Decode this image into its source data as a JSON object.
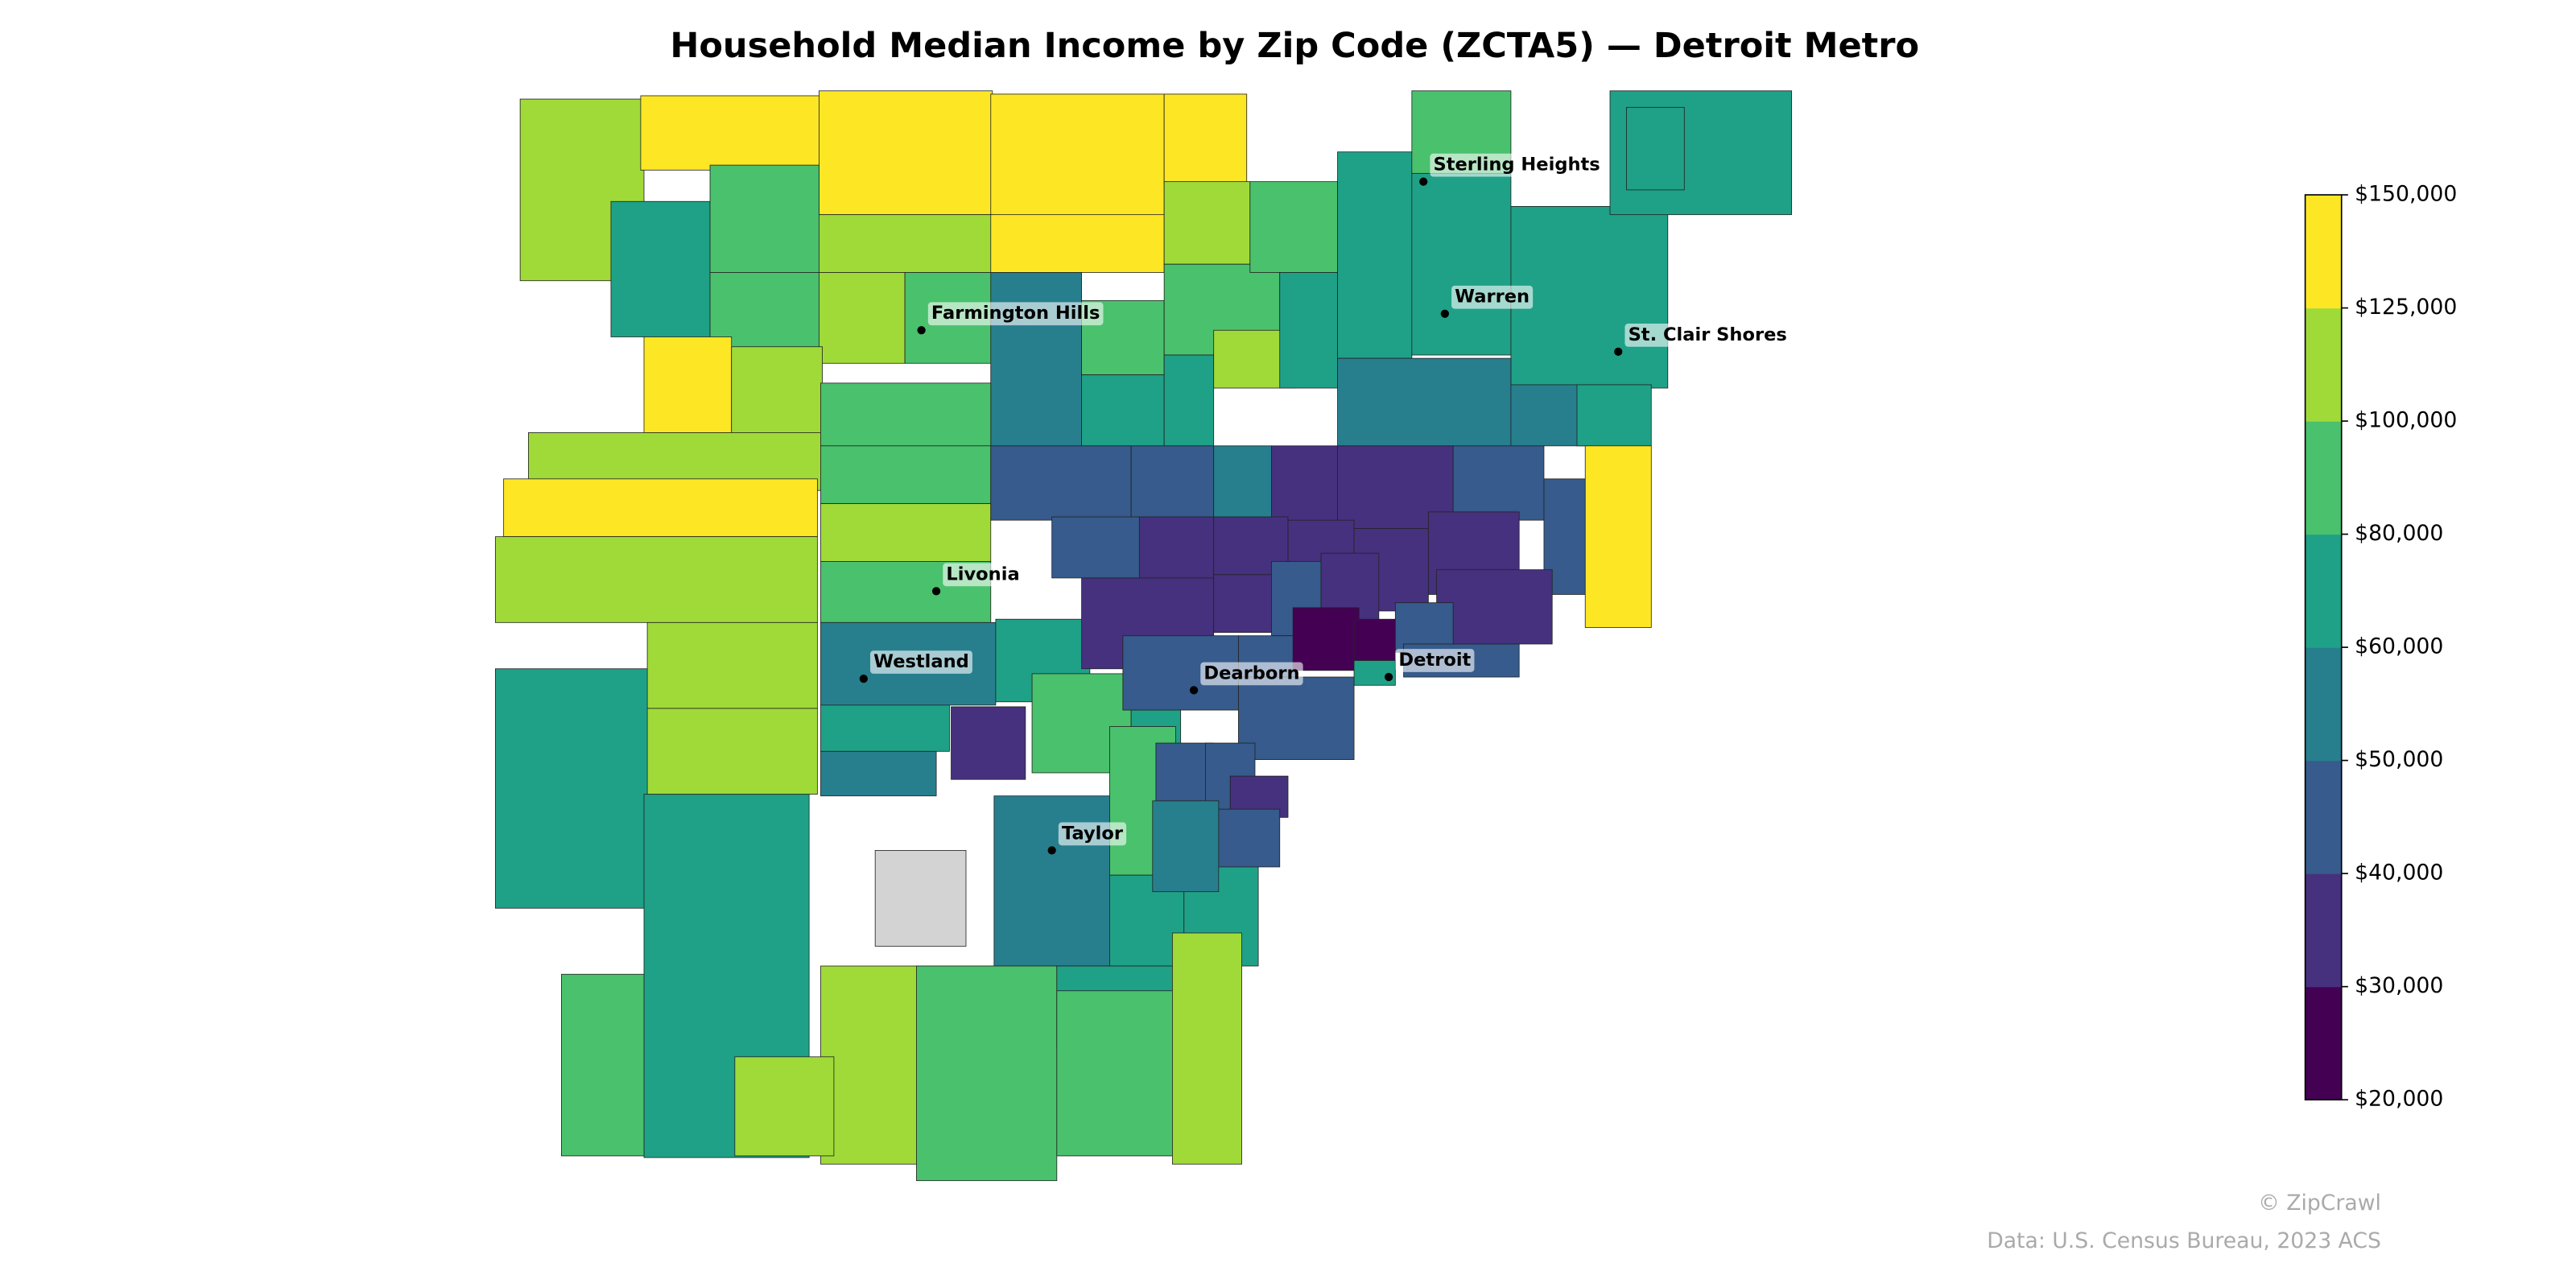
{
  "chart_data": {
    "type": "choropleth",
    "title": "Household Median Income by Zip Code (ZCTA5) — Detroit Metro",
    "regions": [
      110000,
      130000,
      135000,
      140000,
      140000,
      70000,
      90000,
      110000,
      130000,
      90000,
      110000,
      95000,
      130000,
      110000,
      55000,
      90000,
      70000,
      110000,
      90000,
      70000,
      110000,
      90000,
      70000,
      70000,
      90000,
      70000,
      70000,
      70000,
      60000,
      55000,
      55000,
      75000,
      110000,
      130000,
      90000,
      90000,
      110000,
      90000,
      110000,
      110000,
      110000,
      70000,
      70000,
      90000,
      55000,
      70000,
      70000,
      55000,
      35000,
      90000,
      70000,
      null,
      55000,
      90000,
      70000,
      70000,
      110000,
      110000,
      90000,
      70000,
      90000,
      110000,
      45000,
      45000,
      55000,
      35000,
      35000,
      45000,
      45000,
      135000,
      45000,
      35000,
      35000,
      35000,
      35000,
      35000,
      35000,
      35000,
      45000,
      35000,
      35000,
      45000,
      45000,
      25000,
      25000,
      45000,
      75000,
      45000,
      45000,
      45000,
      45000,
      35000,
      45000,
      55000
    ],
    "boundaries": [
      20000,
      30000,
      40000,
      50000,
      60000,
      80000,
      100000,
      125000,
      150000
    ],
    "colors": [
      "#440154",
      "#46317e",
      "#365b8c",
      "#277f8e",
      "#1fa187",
      "#4ac16d",
      "#a0da39",
      "#fde725"
    ],
    "no_data_color": "#d3d3d3",
    "ticks": [
      {
        "value": 20000,
        "label": "$20,000"
      },
      {
        "value": 30000,
        "label": "$30,000"
      },
      {
        "value": 40000,
        "label": "$40,000"
      },
      {
        "value": 50000,
        "label": "$50,000"
      },
      {
        "value": 60000,
        "label": "$60,000"
      },
      {
        "value": 80000,
        "label": "$80,000"
      },
      {
        "value": 100000,
        "label": "$100,000"
      },
      {
        "value": 125000,
        "label": "$125,000"
      },
      {
        "value": 150000,
        "label": "$150,000"
      }
    ],
    "cities": [
      "Sterling Heights",
      "Farmington Hills",
      "Warren",
      "St. Clair Shores",
      "Livonia",
      "Westland",
      "Dearborn",
      "Detroit",
      "Taylor"
    ],
    "credit": "© ZipCrawl",
    "source": "Data: U.S. Census Bureau, 2023 ACS"
  }
}
